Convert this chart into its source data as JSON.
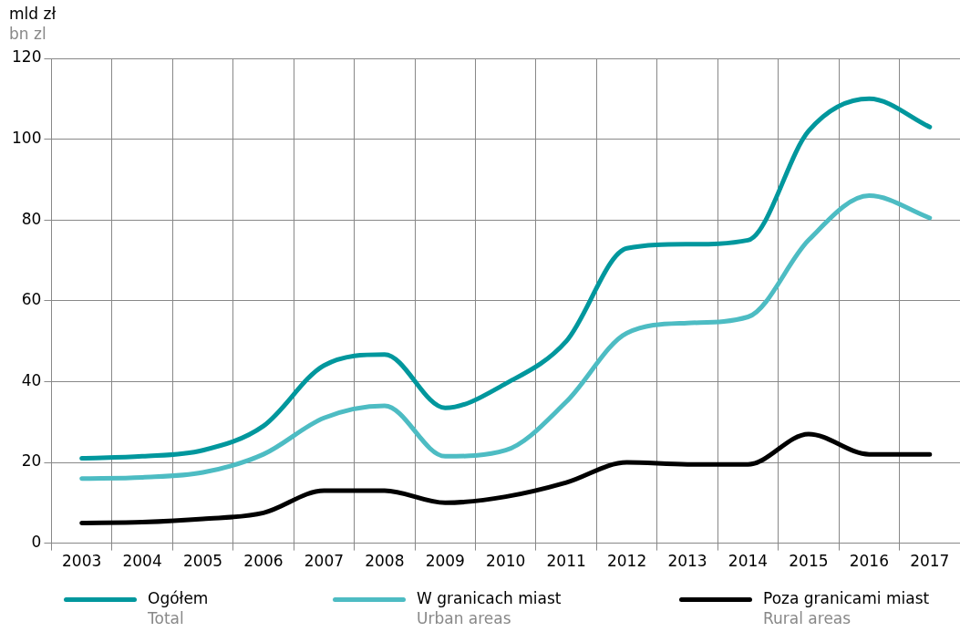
{
  "chart_data": {
    "type": "line",
    "ylabel": "mld zł\nbn zl",
    "categories": [
      "2003",
      "2004",
      "2005",
      "2006",
      "2007",
      "2008",
      "2009",
      "2010",
      "2011",
      "2012",
      "2013",
      "2014",
      "2015",
      "2016",
      "2017"
    ],
    "ylim": [
      0,
      120
    ],
    "yticks": [
      0,
      20,
      40,
      60,
      80,
      100,
      120
    ],
    "grid": true,
    "legend": "bottom",
    "marker": "none",
    "line_style": "solid",
    "series": [
      {
        "name": "Ogółem\nTotal",
        "color": "#00979d",
        "values": [
          21,
          21.5,
          23,
          29,
          44,
          46.7,
          33.5,
          39.5,
          50,
          73,
          74,
          75,
          102,
          110,
          103
        ]
      },
      {
        "name": "W granicach miast\nUrban areas",
        "color": "#4dbcc3",
        "values": [
          16,
          16.3,
          17.5,
          22,
          31,
          34,
          21.5,
          23,
          35,
          52,
          54.5,
          56,
          75,
          86,
          80.5
        ]
      },
      {
        "name": "Poza granicami miast\nRural areas",
        "color": "#000000",
        "values": [
          5,
          5.2,
          6,
          7.5,
          13,
          13,
          10,
          11.5,
          15,
          20,
          19.5,
          19.5,
          27,
          22,
          22
        ]
      }
    ]
  }
}
